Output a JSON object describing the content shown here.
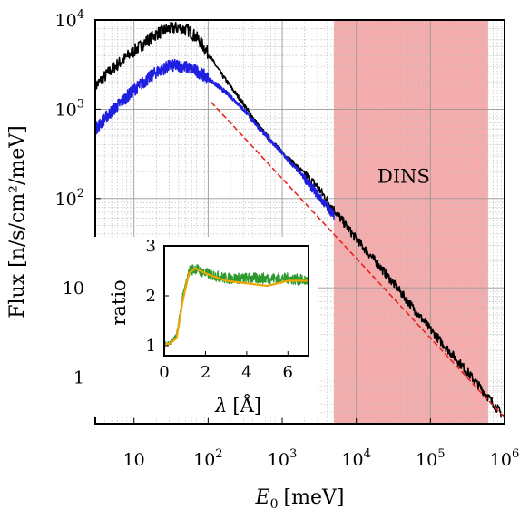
{
  "chart_data": [
    {
      "type": "line",
      "panel": "main",
      "xlabel_main": "E",
      "xlabel_sub": "0",
      "xlabel_unit": "[meV]",
      "ylabel": "Flux [n/s/cm²/meV]",
      "x_scale": "log",
      "y_scale": "log",
      "xlim": [
        3,
        1000000
      ],
      "ylim": [
        0.3,
        10000
      ],
      "grid": true,
      "x_ticks": [
        {
          "value": 10,
          "base": "10",
          "exp": ""
        },
        {
          "value": 100,
          "base": "10",
          "exp": "2"
        },
        {
          "value": 1000,
          "base": "10",
          "exp": "3"
        },
        {
          "value": 10000,
          "base": "10",
          "exp": "4"
        },
        {
          "value": 100000,
          "base": "10",
          "exp": "5"
        },
        {
          "value": 1000000,
          "base": "10",
          "exp": "6"
        }
      ],
      "y_ticks": [
        {
          "value": 1,
          "base": "1",
          "exp": ""
        },
        {
          "value": 10,
          "base": "10",
          "exp": ""
        },
        {
          "value": 100,
          "base": "10",
          "exp": "2"
        },
        {
          "value": 1000,
          "base": "10",
          "exp": "3"
        },
        {
          "value": 10000,
          "base": "10",
          "exp": "4"
        }
      ],
      "shaded_region": {
        "x": [
          5000,
          600000
        ],
        "color": "#f08080",
        "label": "DINS"
      },
      "series": [
        {
          "color": "#000000",
          "noisy": true,
          "points": [
            [
              3,
              1800
            ],
            [
              5,
              2800
            ],
            [
              10,
              4500
            ],
            [
              20,
              7000
            ],
            [
              30,
              8000
            ],
            [
              40,
              8200
            ],
            [
              55,
              7600
            ],
            [
              75,
              6000
            ],
            [
              100,
              4200
            ],
            [
              150,
              2500
            ],
            [
              200,
              1800
            ],
            [
              300,
              1150
            ],
            [
              500,
              620
            ],
            [
              1000,
              330
            ],
            [
              2000,
              190
            ],
            [
              3000,
              135
            ],
            [
              5000,
              75
            ],
            [
              10000,
              35
            ],
            [
              20000,
              18
            ],
            [
              50000,
              7
            ],
            [
              100000,
              3.4
            ],
            [
              300000,
              1.2
            ],
            [
              600000,
              0.6
            ],
            [
              1000000,
              0.35
            ]
          ]
        },
        {
          "color": "#1f1fe0",
          "noisy": true,
          "points": [
            [
              3,
              600
            ],
            [
              5,
              950
            ],
            [
              10,
              1650
            ],
            [
              20,
              2600
            ],
            [
              30,
              3050
            ],
            [
              40,
              3100
            ],
            [
              55,
              2900
            ],
            [
              75,
              2600
            ],
            [
              100,
              2200
            ],
            [
              150,
              1700
            ],
            [
              200,
              1400
            ],
            [
              300,
              1000
            ],
            [
              500,
              600
            ],
            [
              1000,
              320
            ],
            [
              2000,
              170
            ],
            [
              3000,
              110
            ],
            [
              5000,
              65
            ]
          ]
        },
        {
          "color": "#e8231e",
          "dashed": true,
          "points": [
            [
              110,
              1200
            ],
            [
              1000000,
              0.35
            ]
          ]
        }
      ]
    },
    {
      "type": "line",
      "panel": "inset",
      "xlabel_main": "λ",
      "xlabel_unit": "[Å]",
      "ylabel": "ratio",
      "xlim": [
        0,
        7
      ],
      "ylim": [
        0.8,
        3
      ],
      "x_ticks": [
        0,
        2,
        4,
        6
      ],
      "y_ticks": [
        1,
        2,
        3
      ],
      "series": [
        {
          "color": "#2e9a2e",
          "noisy": true,
          "points": [
            [
              0,
              1.05
            ],
            [
              0.3,
              1.05
            ],
            [
              0.6,
              1.2
            ],
            [
              0.9,
              2.0
            ],
            [
              1.2,
              2.5
            ],
            [
              1.5,
              2.55
            ],
            [
              2,
              2.45
            ],
            [
              3,
              2.35
            ],
            [
              4,
              2.35
            ],
            [
              5,
              2.35
            ],
            [
              6,
              2.35
            ],
            [
              7,
              2.3
            ]
          ]
        },
        {
          "color": "#f0a500",
          "noisy": false,
          "points": [
            [
              0,
              1.02
            ],
            [
              0.3,
              1.05
            ],
            [
              0.6,
              1.15
            ],
            [
              0.9,
              1.9
            ],
            [
              1.2,
              2.45
            ],
            [
              1.5,
              2.55
            ],
            [
              2,
              2.45
            ],
            [
              3,
              2.3
            ],
            [
              4,
              2.25
            ],
            [
              5,
              2.2
            ],
            [
              6,
              2.3
            ],
            [
              7,
              2.3
            ]
          ]
        }
      ]
    }
  ]
}
